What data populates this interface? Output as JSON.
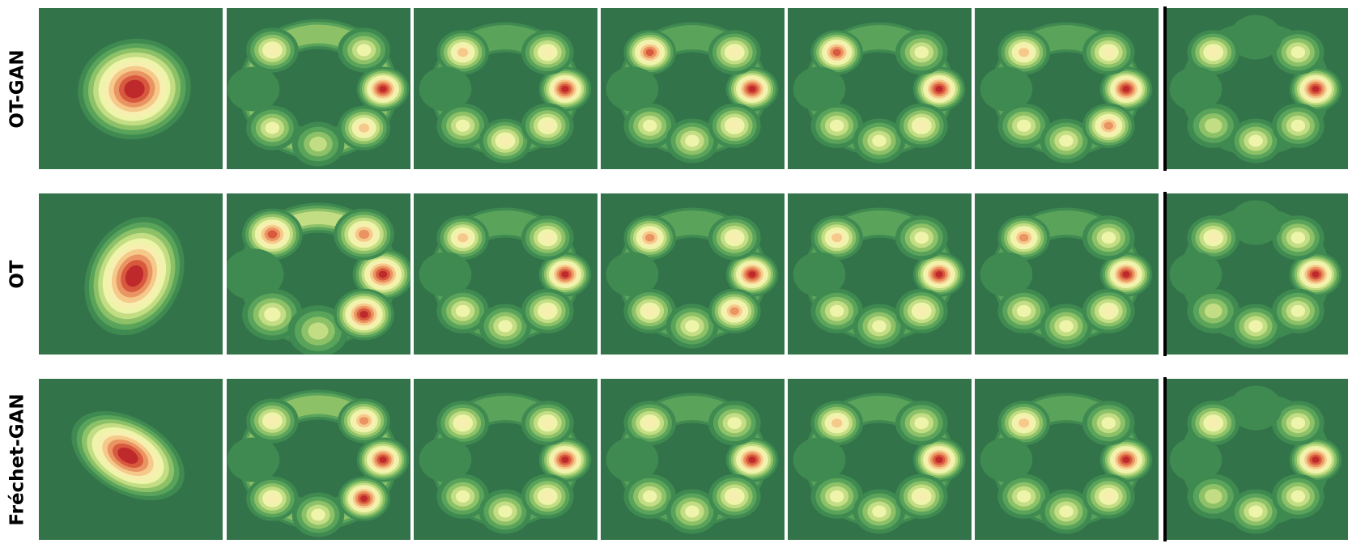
{
  "figure": {
    "row_labels": [
      "OT-GAN",
      "OT",
      "Fréchet-GAN"
    ],
    "colors": {
      "background": "#33734a",
      "colormap": [
        "#33734a",
        "#3f8a50",
        "#5aa35b",
        "#8cc168",
        "#c2dd84",
        "#eef4aa",
        "#f7efb0",
        "#f5c98a",
        "#ea9463",
        "#d85a3e",
        "#be2a2b"
      ]
    }
  }
}
